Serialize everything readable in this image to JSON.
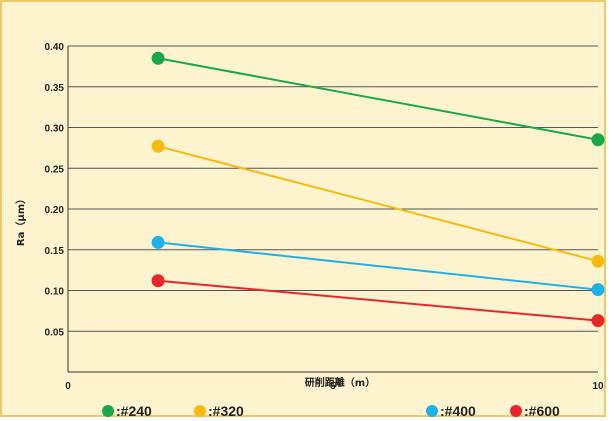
{
  "chart_data": {
    "type": "line",
    "xlabel": "研削距離（m）",
    "ylabel": "Ra（μm）",
    "xlim": [
      0,
      10
    ],
    "ylim": [
      0,
      0.4
    ],
    "x_ticks": [
      "0",
      "5",
      "10"
    ],
    "y_ticks": [
      "0.05",
      "0.10",
      "0.15",
      "0.20",
      "0.25",
      "0.30",
      "0.35",
      "0.40"
    ],
    "grid": "horizontal",
    "legend_position": "bottom",
    "series": [
      {
        "name": ":#240",
        "color": "#1aa84a",
        "x": [
          1.7,
          10
        ],
        "y": [
          0.385,
          0.285
        ]
      },
      {
        "name": ":#320",
        "color": "#f5bb12",
        "x": [
          1.7,
          10
        ],
        "y": [
          0.277,
          0.136
        ]
      },
      {
        "name": ":#400",
        "color": "#1fb1ea",
        "x": [
          1.7,
          10
        ],
        "y": [
          0.159,
          0.101
        ]
      },
      {
        "name": ":#600",
        "color": "#e8262a",
        "x": [
          1.7,
          10
        ],
        "y": [
          0.112,
          0.063
        ]
      }
    ]
  }
}
